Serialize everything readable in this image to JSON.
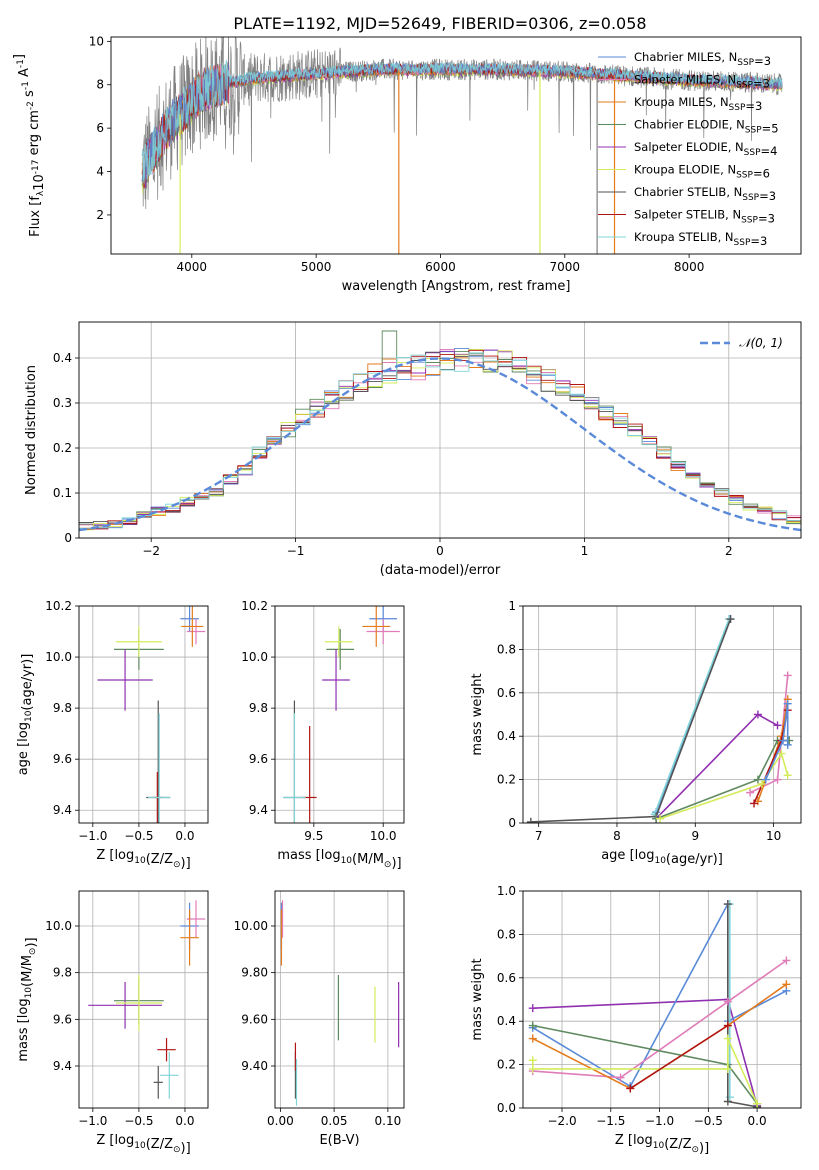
{
  "figure": {
    "title": "PLATE=1192, MJD=52649, FIBERID=0306, z=0.058"
  },
  "colors": {
    "chabrier_miles": "#5a8ad8",
    "salpeter_miles": "#e07cb8",
    "kroupa_miles": "#e47b1c",
    "chabrier_elodie": "#5f8a5f",
    "salpeter_elodie": "#9030b0",
    "kroupa_elodie": "#d4ec5c",
    "chabrier_stelib": "#555555",
    "salpeter_stelib": "#b01414",
    "kroupa_stelib": "#80d4d8",
    "data": "#808080",
    "normal": "#5a8ad8",
    "grid": "#b0b0b0"
  },
  "chart_data": [
    {
      "type": "line",
      "id": "spectrum",
      "xlabel": "wavelength [Angstrom, rest frame]",
      "ylabel": "Flux [f_λ10^-17 erg cm^-2 s^-1 A^-1]",
      "xlim": [
        3350,
        8900
      ],
      "ylim": [
        0.2,
        10.2
      ],
      "xticks": [
        4000,
        5000,
        6000,
        7000,
        8000
      ],
      "yticks": [
        2,
        4,
        6,
        8,
        10
      ],
      "grid": false,
      "legend_position": "top-right",
      "legend": [
        {
          "name": "Chabrier MILES, N_SSP=3",
          "color_key": "chabrier_miles"
        },
        {
          "name": "Salpeter MILES, N_SSP=3",
          "color_key": "salpeter_miles"
        },
        {
          "name": "Kroupa MILES, N_SSP=3",
          "color_key": "kroupa_miles"
        },
        {
          "name": "Chabrier ELODIE, N_SSP=5",
          "color_key": "chabrier_elodie"
        },
        {
          "name": "Salpeter ELODIE, N_SSP=4",
          "color_key": "salpeter_elodie"
        },
        {
          "name": "Kroupa ELODIE, N_SSP=6",
          "color_key": "kroupa_elodie"
        },
        {
          "name": "Chabrier STELIB, N_SSP=3",
          "color_key": "chabrier_stelib"
        },
        {
          "name": "Salpeter STELIB, N_SSP=3",
          "color_key": "salpeter_stelib"
        },
        {
          "name": "Kroupa STELIB, N_SSP=3",
          "color_key": "kroupa_stelib"
        }
      ],
      "data_x_range": [
        3600,
        8750
      ],
      "continuum_knots": [
        [
          3600,
          4.0
        ],
        [
          3700,
          5.0
        ],
        [
          3800,
          6.0
        ],
        [
          3950,
          6.9
        ],
        [
          4100,
          7.8
        ],
        [
          4300,
          8.1
        ],
        [
          4500,
          8.3
        ],
        [
          5000,
          8.5
        ],
        [
          5500,
          8.7
        ],
        [
          6000,
          8.7
        ],
        [
          6500,
          8.7
        ],
        [
          7000,
          8.6
        ],
        [
          7500,
          8.4
        ],
        [
          8000,
          8.2
        ],
        [
          8500,
          8.1
        ],
        [
          8750,
          8.0
        ]
      ],
      "spikes": [
        {
          "x": 3906,
          "y": 0.2,
          "color_key": "kroupa_elodie"
        },
        {
          "x": 5665,
          "y": 0.2,
          "color_key": "kroupa_miles"
        },
        {
          "x": 6800,
          "y": 0.2,
          "color_key": "kroupa_elodie"
        },
        {
          "x": 7260,
          "y": 0.2,
          "color_key": "data"
        },
        {
          "x": 7400,
          "y": 0.2,
          "color_key": "kroupa_miles"
        }
      ]
    },
    {
      "type": "bar",
      "id": "residuals",
      "xlabel": "(data-model)/error",
      "ylabel": "Normed distribution",
      "xlim": [
        -2.5,
        2.5
      ],
      "ylim": [
        0,
        0.48
      ],
      "xticks": [
        -2,
        -1,
        0,
        1,
        2
      ],
      "yticks": [
        0.0,
        0.1,
        0.2,
        0.3,
        0.4
      ],
      "grid": true,
      "legend_position": "top-right",
      "legend": [
        {
          "name": "𝒩(0, 1)",
          "color_key": "normal",
          "style": "dashed"
        }
      ],
      "bin_width": 0.1,
      "bin_start": -2.5,
      "envelope": [
        0.025,
        0.03,
        0.03,
        0.04,
        0.05,
        0.06,
        0.065,
        0.08,
        0.09,
        0.1,
        0.13,
        0.15,
        0.19,
        0.21,
        0.24,
        0.27,
        0.29,
        0.31,
        0.33,
        0.34,
        0.36,
        0.37,
        0.38,
        0.38,
        0.39,
        0.395,
        0.4,
        0.4,
        0.39,
        0.39,
        0.38,
        0.37,
        0.35,
        0.34,
        0.32,
        0.3,
        0.28,
        0.26,
        0.24,
        0.21,
        0.19,
        0.16,
        0.14,
        0.12,
        0.1,
        0.085,
        0.07,
        0.06,
        0.05,
        0.04
      ]
    },
    {
      "type": "scatter",
      "id": "age_vs_Z",
      "xlabel": "Z [log10(Z/Z☉)]",
      "ylabel": "age  [log10(age/yr)]",
      "xlim": [
        -1.15,
        0.25
      ],
      "ylim": [
        9.35,
        10.2
      ],
      "xticks": [
        -1.0,
        -0.5,
        0.0
      ],
      "yticks": [
        9.4,
        9.6,
        9.8,
        10.0,
        10.2
      ],
      "grid": true,
      "points": [
        {
          "x": 0.05,
          "y": 10.15,
          "xerr": 0.1,
          "yerr": 0.05,
          "c": "chabrier_miles"
        },
        {
          "x": 0.12,
          "y": 10.1,
          "xerr": 0.1,
          "yerr": 0.05,
          "c": "salpeter_miles"
        },
        {
          "x": 0.08,
          "y": 10.12,
          "xerr": 0.12,
          "yerr": 0.08,
          "c": "kroupa_miles"
        },
        {
          "x": -0.5,
          "y": 10.03,
          "xerr": 0.27,
          "yerr": 0.08,
          "c": "chabrier_elodie"
        },
        {
          "x": -0.65,
          "y": 9.91,
          "xerr": 0.3,
          "yerr": 0.12,
          "c": "salpeter_elodie"
        },
        {
          "x": -0.5,
          "y": 10.06,
          "xerr": 0.25,
          "yerr": 0.06,
          "c": "kroupa_elodie"
        },
        {
          "x": -0.29,
          "y": 9.45,
          "xerr": 0.13,
          "yerr": 0.38,
          "c": "chabrier_stelib"
        },
        {
          "x": -0.3,
          "y": 9.45,
          "xerr": 0.05,
          "yerr": 0.1,
          "c": "salpeter_stelib"
        },
        {
          "x": -0.28,
          "y": 9.45,
          "xerr": 0.12,
          "yerr": 0.33,
          "c": "kroupa_stelib"
        }
      ]
    },
    {
      "type": "scatter",
      "id": "age_vs_mass",
      "xlabel": "mass [log10(M/M☉)]",
      "ylabel": "",
      "xlim": [
        9.22,
        10.15
      ],
      "ylim": [
        9.35,
        10.2
      ],
      "xticks": [
        9.5,
        10.0
      ],
      "yticks": [
        9.4,
        9.6,
        9.8,
        10.0,
        10.2
      ],
      "grid": true,
      "points": [
        {
          "x": 10.0,
          "y": 10.15,
          "xerr": 0.1,
          "yerr": 0.05,
          "c": "chabrier_miles"
        },
        {
          "x": 10.0,
          "y": 10.1,
          "xerr": 0.12,
          "yerr": 0.05,
          "c": "salpeter_miles"
        },
        {
          "x": 9.95,
          "y": 10.12,
          "xerr": 0.1,
          "yerr": 0.08,
          "c": "kroupa_miles"
        },
        {
          "x": 9.69,
          "y": 10.03,
          "xerr": 0.1,
          "yerr": 0.08,
          "c": "chabrier_elodie"
        },
        {
          "x": 9.66,
          "y": 9.91,
          "xerr": 0.1,
          "yerr": 0.12,
          "c": "salpeter_elodie"
        },
        {
          "x": 9.68,
          "y": 10.06,
          "xerr": 0.1,
          "yerr": 0.06,
          "c": "kroupa_elodie"
        },
        {
          "x": 9.36,
          "y": 9.45,
          "xerr": 0.08,
          "yerr": 0.38,
          "c": "chabrier_stelib"
        },
        {
          "x": 9.47,
          "y": 9.45,
          "xerr": 0.05,
          "yerr": 0.28,
          "c": "salpeter_stelib"
        },
        {
          "x": 9.36,
          "y": 9.45,
          "xerr": 0.08,
          "yerr": 0.33,
          "c": "kroupa_stelib"
        }
      ]
    },
    {
      "type": "line",
      "id": "massweight_vs_age",
      "xlabel": "age  [log10(age/yr)]",
      "ylabel": "mass weight",
      "xlim": [
        6.8,
        10.35
      ],
      "ylim": [
        0,
        1.0
      ],
      "xticks": [
        7,
        8,
        9,
        10
      ],
      "yticks": [
        0.0,
        0.2,
        0.4,
        0.6,
        0.8,
        1.0
      ],
      "grid": true,
      "series": [
        {
          "c": "chabrier_miles",
          "pts": [
            [
              8.5,
              0.05
            ],
            [
              9.45,
              0.94
            ]
          ]
        },
        {
          "c": "kroupa_stelib",
          "pts": [
            [
              8.48,
              0.04
            ],
            [
              9.43,
              0.94
            ]
          ]
        },
        {
          "c": "chabrier_stelib",
          "pts": [
            [
              6.9,
              0.005
            ],
            [
              8.5,
              0.03
            ],
            [
              9.45,
              0.94
            ]
          ]
        },
        {
          "c": "salpeter_elodie",
          "pts": [
            [
              8.5,
              0.02
            ],
            [
              9.8,
              0.5
            ],
            [
              10.05,
              0.45
            ]
          ]
        },
        {
          "c": "chabrier_elodie",
          "pts": [
            [
              8.5,
              0.02
            ],
            [
              9.8,
              0.2
            ],
            [
              10.05,
              0.38
            ],
            [
              10.2,
              0.38
            ]
          ]
        },
        {
          "c": "salpeter_miles",
          "pts": [
            [
              9.7,
              0.14
            ],
            [
              10.05,
              0.2
            ],
            [
              10.18,
              0.68
            ]
          ]
        },
        {
          "c": "kroupa_miles",
          "pts": [
            [
              9.8,
              0.1
            ],
            [
              10.1,
              0.4
            ],
            [
              10.18,
              0.57
            ]
          ]
        },
        {
          "c": "salpeter_stelib",
          "pts": [
            [
              9.75,
              0.09
            ],
            [
              10.1,
              0.38
            ],
            [
              10.18,
              0.52
            ]
          ]
        },
        {
          "c": "kroupa_elodie",
          "pts": [
            [
              8.55,
              0.02
            ],
            [
              9.85,
              0.18
            ],
            [
              10.1,
              0.32
            ],
            [
              10.18,
              0.22
            ]
          ]
        },
        {
          "c": "chabrier_miles",
          "pts": [
            [
              9.9,
              0.2
            ],
            [
              10.12,
              0.38
            ],
            [
              10.18,
              0.55
            ],
            [
              10.18,
              0.36
            ]
          ]
        }
      ]
    },
    {
      "type": "scatter",
      "id": "mass_vs_Z",
      "xlabel": "Z [log10(Z/Z☉)]",
      "ylabel": "mass [log10(M/M☉)]",
      "xlim": [
        -1.15,
        0.25
      ],
      "ylim": [
        9.22,
        10.15
      ],
      "xticks": [
        -1.0,
        -0.5,
        0.0
      ],
      "yticks": [
        9.4,
        9.6,
        9.8,
        10.0
      ],
      "grid": true,
      "points": [
        {
          "x": 0.05,
          "y": 10.0,
          "xerr": 0.1,
          "yerr": 0.1,
          "c": "chabrier_miles"
        },
        {
          "x": 0.12,
          "y": 10.03,
          "xerr": 0.1,
          "yerr": 0.08,
          "c": "salpeter_miles"
        },
        {
          "x": 0.05,
          "y": 9.95,
          "xerr": 0.1,
          "yerr": 0.12,
          "c": "kroupa_miles"
        },
        {
          "x": -0.5,
          "y": 9.68,
          "xerr": 0.27,
          "yerr": 0.1,
          "c": "chabrier_elodie"
        },
        {
          "x": -0.65,
          "y": 9.66,
          "xerr": 0.4,
          "yerr": 0.1,
          "c": "salpeter_elodie"
        },
        {
          "x": -0.5,
          "y": 9.67,
          "xerr": 0.25,
          "yerr": 0.12,
          "c": "kroupa_elodie"
        },
        {
          "x": -0.29,
          "y": 9.33,
          "xerr": 0.05,
          "yerr": 0.07,
          "c": "chabrier_stelib"
        },
        {
          "x": -0.2,
          "y": 9.47,
          "xerr": 0.1,
          "yerr": 0.05,
          "c": "salpeter_stelib"
        },
        {
          "x": -0.17,
          "y": 9.36,
          "xerr": 0.1,
          "yerr": 0.1,
          "c": "kroupa_stelib"
        }
      ]
    },
    {
      "type": "scatter",
      "id": "mass_vs_ebv",
      "xlabel": "E(B-V)",
      "ylabel": "",
      "xlim": [
        -0.005,
        0.115
      ],
      "ylim": [
        9.22,
        10.15
      ],
      "xticks": [
        0.0,
        0.05,
        0.1
      ],
      "yticks": [
        9.4,
        9.6,
        9.8,
        10.0
      ],
      "grid": true,
      "points": [
        {
          "x": 0.001,
          "y": 10.0,
          "xerr": 0,
          "yerr": 0.1,
          "c": "chabrier_miles"
        },
        {
          "x": 0.002,
          "y": 10.03,
          "xerr": 0,
          "yerr": 0.08,
          "c": "salpeter_miles"
        },
        {
          "x": 0.001,
          "y": 9.95,
          "xerr": 0,
          "yerr": 0.12,
          "c": "kroupa_miles"
        },
        {
          "x": 0.054,
          "y": 9.65,
          "xerr": 0,
          "yerr": 0.14,
          "c": "chabrier_elodie"
        },
        {
          "x": 0.11,
          "y": 9.62,
          "xerr": 0,
          "yerr": 0.14,
          "c": "salpeter_elodie"
        },
        {
          "x": 0.088,
          "y": 9.62,
          "xerr": 0,
          "yerr": 0.12,
          "c": "kroupa_elodie"
        },
        {
          "x": 0.014,
          "y": 9.36,
          "xerr": 0,
          "yerr": 0.1,
          "c": "chabrier_stelib"
        },
        {
          "x": 0.014,
          "y": 9.44,
          "xerr": 0,
          "yerr": 0.06,
          "c": "salpeter_stelib"
        },
        {
          "x": 0.015,
          "y": 9.33,
          "xerr": 0,
          "yerr": 0.1,
          "c": "kroupa_stelib"
        }
      ]
    },
    {
      "type": "line",
      "id": "massweight_vs_Z",
      "xlabel": "Z [log10(Z/Z☉)]",
      "ylabel": "mass weight",
      "xlim": [
        -2.4,
        0.45
      ],
      "ylim": [
        0,
        1.0
      ],
      "xticks": [
        -2.0,
        -1.5,
        -1.0,
        -0.5,
        0.0
      ],
      "yticks": [
        0.0,
        0.2,
        0.4,
        0.6,
        0.8,
        1.0
      ],
      "grid": true,
      "series": [
        {
          "c": "salpeter_elodie",
          "pts": [
            [
              -2.3,
              0.46
            ],
            [
              -0.3,
              0.5
            ],
            [
              0.0,
              0.01
            ]
          ]
        },
        {
          "c": "chabrier_miles",
          "pts": [
            [
              -2.3,
              0.37
            ],
            [
              -1.3,
              0.1
            ],
            [
              -0.3,
              0.94
            ],
            [
              -0.3,
              0.4
            ],
            [
              0.3,
              0.54
            ]
          ]
        },
        {
          "c": "kroupa_stelib",
          "pts": [
            [
              -0.28,
              0.94
            ],
            [
              -0.28,
              0.05
            ]
          ]
        },
        {
          "c": "chabrier_stelib",
          "pts": [
            [
              -0.3,
              0.94
            ],
            [
              -0.3,
              0.03
            ],
            [
              0.0,
              0.005
            ]
          ]
        },
        {
          "c": "salpeter_miles",
          "pts": [
            [
              -2.3,
              0.17
            ],
            [
              -1.4,
              0.14
            ],
            [
              -0.3,
              0.49
            ],
            [
              0.3,
              0.68
            ]
          ]
        },
        {
          "c": "kroupa_miles",
          "pts": [
            [
              -2.3,
              0.32
            ],
            [
              -1.3,
              0.09
            ],
            [
              -0.3,
              0.38
            ],
            [
              0.3,
              0.57
            ]
          ]
        },
        {
          "c": "chabrier_elodie",
          "pts": [
            [
              -2.3,
              0.38
            ],
            [
              -0.3,
              0.2
            ],
            [
              0.0,
              0.02
            ]
          ]
        },
        {
          "c": "kroupa_elodie",
          "pts": [
            [
              -2.3,
              0.22
            ],
            [
              -2.3,
              0.18
            ],
            [
              -0.3,
              0.18
            ],
            [
              -0.3,
              0.32
            ],
            [
              0.0,
              0.02
            ]
          ]
        },
        {
          "c": "salpeter_stelib",
          "pts": [
            [
              -1.3,
              0.09
            ],
            [
              -0.3,
              0.38
            ]
          ]
        }
      ]
    }
  ]
}
